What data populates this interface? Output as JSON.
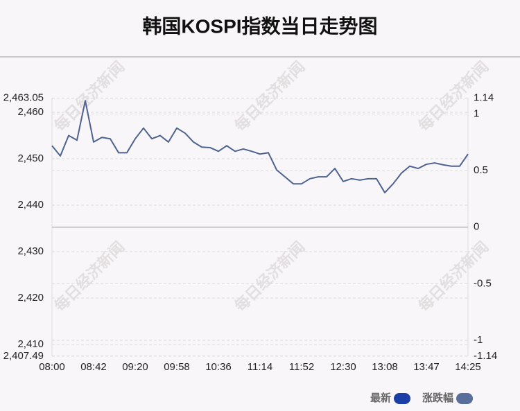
{
  "chart_data": {
    "type": "line",
    "title": "韩国KOSPI指数当日走势图",
    "watermark": "每日经济新闻",
    "categories": [
      "08:00",
      null,
      null,
      null,
      null,
      "08:42",
      null,
      null,
      null,
      null,
      "09:20",
      null,
      null,
      null,
      null,
      "09:58",
      null,
      null,
      null,
      null,
      "10:36",
      null,
      null,
      null,
      null,
      "11:14",
      null,
      null,
      null,
      null,
      "11:52",
      null,
      null,
      null,
      null,
      "12:30",
      null,
      null,
      null,
      null,
      "13:08",
      null,
      null,
      null,
      null,
      "13:47",
      null,
      null,
      null,
      null,
      "14:25"
    ],
    "series": [
      {
        "name": "最新",
        "color": "#4d6290",
        "values": [
          2452.8,
          2450.6,
          2455,
          2454,
          2462.5,
          2453.6,
          2454.6,
          2454.3,
          2451.3,
          2451.3,
          2454.3,
          2456.6,
          2454.3,
          2455,
          2453.6,
          2456.6,
          2455.5,
          2453.6,
          2452.5,
          2452.4,
          2451.6,
          2452.8,
          2451.6,
          2452.1,
          2451.6,
          2451,
          2451.3,
          2447.6,
          2446.1,
          2444.6,
          2444.6,
          2445.7,
          2446.1,
          2446.1,
          2447.9,
          2445.1,
          2445.7,
          2445.4,
          2445.7,
          2445.7,
          2442.7,
          2444.6,
          2446.9,
          2448.4,
          2447.9,
          2448.8,
          2449.1,
          2448.7,
          2448.4,
          2448.4,
          2451
        ]
      }
    ],
    "legend": [
      {
        "name": "最新",
        "color": "#1c3fa6"
      },
      {
        "name": "涨跌幅",
        "color": "#5a6e9c"
      }
    ],
    "ylim": [
      2407.49,
      2463.05
    ],
    "yticks": [
      {
        "value": 2407.49,
        "label": "2,407.49"
      },
      {
        "value": 2410,
        "label": "2,410"
      },
      {
        "value": 2420,
        "label": "2,420"
      },
      {
        "value": 2430,
        "label": "2,430"
      },
      {
        "value": 2440,
        "label": "2,440"
      },
      {
        "value": 2450,
        "label": "2,450"
      },
      {
        "value": 2460,
        "label": "2,460"
      },
      {
        "value": 2463.05,
        "label": "2,463.05"
      }
    ],
    "y2lim": [
      -1.14,
      1.14
    ],
    "y2ticks": [
      -1.14,
      -1,
      -0.5,
      0,
      0.5,
      1,
      1.14
    ],
    "grid": true
  }
}
